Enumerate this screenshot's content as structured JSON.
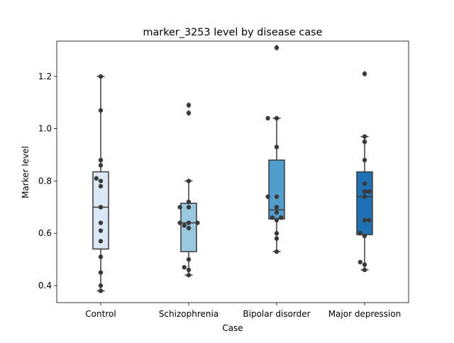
{
  "chart_data": {
    "type": "box",
    "title": "marker_3253 level by disease case",
    "xlabel": "Case",
    "ylabel": "Marker level",
    "ylim": [
      0.335,
      1.335
    ],
    "yticks": [
      0.4,
      0.6,
      0.8,
      1.0,
      1.2
    ],
    "ytick_labels": [
      "0.4",
      "0.6",
      "0.8",
      "1.0",
      "1.2"
    ],
    "grid": false,
    "categories": [
      "Control",
      "Schizophrenia",
      "Bipolar disorder",
      "Major depression"
    ],
    "colors": [
      "#dbe9f6",
      "#9ac8e0",
      "#529dcc",
      "#2070b4"
    ],
    "box_stats": [
      {
        "q1": 0.54,
        "median": 0.7,
        "q3": 0.835,
        "whisker_low": 0.38,
        "whisker_high": 1.2,
        "fliers": []
      },
      {
        "q1": 0.53,
        "median": 0.64,
        "q3": 0.715,
        "whisker_low": 0.44,
        "whisker_high": 0.8,
        "fliers": [
          1.06,
          1.09
        ]
      },
      {
        "q1": 0.655,
        "median": 0.69,
        "q3": 0.88,
        "whisker_low": 0.53,
        "whisker_high": 1.04,
        "fliers": [
          1.31
        ]
      },
      {
        "q1": 0.595,
        "median": 0.74,
        "q3": 0.835,
        "whisker_low": 0.46,
        "whisker_high": 0.97,
        "fliers": [
          1.21
        ]
      }
    ],
    "points": [
      [
        0.38,
        0.4,
        0.45,
        0.51,
        0.57,
        0.61,
        0.64,
        0.7,
        0.78,
        0.8,
        0.81,
        0.86,
        0.88,
        1.07,
        1.2
      ],
      [
        0.44,
        0.46,
        0.47,
        0.5,
        0.62,
        0.63,
        0.64,
        0.64,
        0.64,
        0.7,
        0.7,
        0.72,
        0.8,
        1.06,
        1.09
      ],
      [
        0.53,
        0.58,
        0.6,
        0.65,
        0.66,
        0.66,
        0.68,
        0.7,
        0.74,
        0.74,
        0.93,
        1.04,
        1.04,
        1.31
      ],
      [
        0.46,
        0.48,
        0.49,
        0.59,
        0.6,
        0.65,
        0.65,
        0.74,
        0.76,
        0.76,
        0.79,
        0.88,
        0.95,
        0.97,
        1.21
      ]
    ]
  }
}
